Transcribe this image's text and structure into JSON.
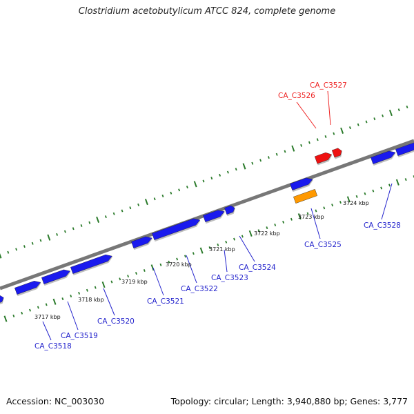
{
  "title": "Clostridium acetobutylicum ATCC 824, complete genome",
  "accession": "Accession: NC_003030",
  "summary": "Topology: circular; Length: 3,940,880 bp; Genes: 3,777",
  "colors": {
    "forward_gene": "#1a1aee",
    "highlight_gene": "#ee1111",
    "rna_gene": "#ff9900",
    "backbone": "#777777",
    "ticks": "#2a7a2a",
    "forward_label": "#2222cc",
    "highlight_label": "#ee2222"
  },
  "scale_labels": [
    "3717 kbp",
    "3718 kbp",
    "3719 kbp",
    "3720 kbp",
    "3721 kbp",
    "3722 kbp",
    "3723 kbp",
    "3724 kbp"
  ],
  "genes": [
    {
      "label": "CA_C3518",
      "color": "forward"
    },
    {
      "label": "CA_C3519",
      "color": "forward"
    },
    {
      "label": "CA_C3520",
      "color": "forward"
    },
    {
      "label": "CA_C3521",
      "color": "forward"
    },
    {
      "label": "CA_C3522",
      "color": "forward"
    },
    {
      "label": "CA_C3523",
      "color": "forward"
    },
    {
      "label": "CA_C3524",
      "color": "forward"
    },
    {
      "label": "CA_C3525",
      "color": "forward"
    },
    {
      "label": "CA_C3526",
      "color": "highlight"
    },
    {
      "label": "CA_C3527",
      "color": "highlight"
    },
    {
      "label": "CA_C3528",
      "color": "forward"
    }
  ]
}
